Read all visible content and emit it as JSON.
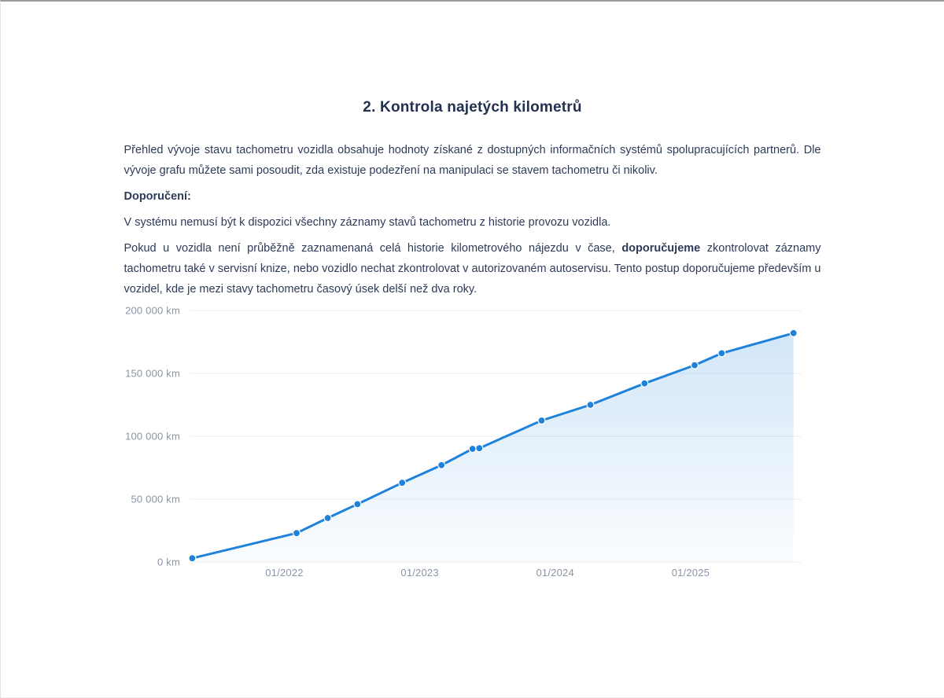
{
  "document": {
    "title": "2. Kontrola najetých kilometrů",
    "intro": "Přehled vývoje stavu tachometru vozidla obsahuje hodnoty získané z dostupných informačních systémů spolupracujících partnerů. Dle vývoje grafu můžete sami posoudit, zda existuje podezření na manipulaci se stavem tachometru či nikoliv.",
    "recommendation_heading": "Doporučení:",
    "note": "V systému nemusí být k dispozici všechny záznamy stavů tachometru z historie provozu vozidla.",
    "advice": {
      "part1": "Pokud u vozidla není průběžně zaznamenaná celá historie kilometrového nájezdu v čase, ",
      "bold": "doporučujeme",
      "part2": " zkontrolovat záznamy tachometru také v servisní knize, nebo vozidlo nechat zkontrolovat v autorizovaném autoservisu. Tento postup doporučujeme především u vozidel, kde je mezi stavy tachometru časový úsek delší než dva roky."
    }
  },
  "chart_data": {
    "type": "line",
    "unit": "km",
    "xlim": [
      2021.3,
      2025.82
    ],
    "ylim": [
      0,
      200000
    ],
    "grid": true,
    "legend": false,
    "y_ticks": [
      {
        "v": 0,
        "label": "0 km"
      },
      {
        "v": 50000,
        "label": "50 000 km"
      },
      {
        "v": 100000,
        "label": "100 000 km"
      },
      {
        "v": 150000,
        "label": "150 000 km"
      },
      {
        "v": 200000,
        "label": "200 000 km"
      }
    ],
    "x_ticks": [
      {
        "v": 2022,
        "label": "01/2022"
      },
      {
        "v": 2023,
        "label": "01/2023"
      },
      {
        "v": 2024,
        "label": "01/2024"
      },
      {
        "v": 2025,
        "label": "01/2025"
      }
    ],
    "points": [
      {
        "date": "05/2021",
        "x": 2021.32,
        "km": 3000
      },
      {
        "date": "02/2022",
        "x": 2022.09,
        "km": 23000
      },
      {
        "date": "04/2022",
        "x": 2022.32,
        "km": 35000
      },
      {
        "date": "07/2022",
        "x": 2022.54,
        "km": 46000
      },
      {
        "date": "11/2022",
        "x": 2022.87,
        "km": 63000
      },
      {
        "date": "02/2023",
        "x": 2023.16,
        "km": 77000
      },
      {
        "date": "05/2023",
        "x": 2023.39,
        "km": 90000
      },
      {
        "date": "06/2023",
        "x": 2023.44,
        "km": 90500
      },
      {
        "date": "11/2023",
        "x": 2023.9,
        "km": 112500
      },
      {
        "date": "04/2024",
        "x": 2024.26,
        "km": 125000
      },
      {
        "date": "08/2024",
        "x": 2024.66,
        "km": 142000
      },
      {
        "date": "01/2025",
        "x": 2025.03,
        "km": 156500
      },
      {
        "date": "04/2025",
        "x": 2025.23,
        "km": 166000
      },
      {
        "date": "10/2025",
        "x": 2025.76,
        "km": 182000
      }
    ],
    "colors": {
      "line": "#1e82da",
      "dot": "#1e82da",
      "dot_stroke": "#ffffff",
      "grid": "#ebedf0",
      "axis_text": "#8a95a7",
      "fill_top": "#1e82da",
      "fill_top_opacity": 0.2,
      "fill_bottom_opacity": 0.02
    }
  }
}
